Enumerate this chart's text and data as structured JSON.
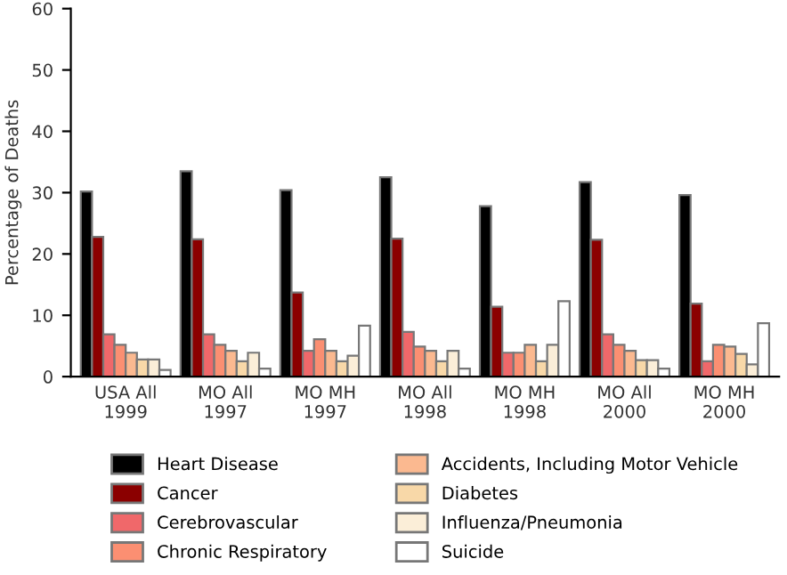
{
  "chart_data": {
    "type": "bar",
    "ylabel": "Percentage of Deaths",
    "categories": [
      "USA All\n1999",
      "MO All\n1997",
      "MO MH\n1997",
      "MO All\n1998",
      "MO MH\n1998",
      "MO All\n2000",
      "MO MH\n2000"
    ],
    "series": [
      {
        "name": "Heart Disease",
        "color": "#000000",
        "values": [
          30.2,
          33.5,
          30.4,
          32.5,
          27.8,
          31.7,
          29.6
        ]
      },
      {
        "name": "Cancer",
        "color": "#8b0000",
        "values": [
          22.8,
          22.4,
          13.7,
          22.5,
          11.4,
          22.3,
          11.9
        ]
      },
      {
        "name": "Cerebrovascular",
        "color": "#f0686a",
        "values": [
          6.9,
          6.9,
          4.2,
          7.3,
          3.9,
          6.9,
          2.5
        ]
      },
      {
        "name": "Chronic Respiratory",
        "color": "#fb8f72",
        "values": [
          5.2,
          5.2,
          6.1,
          4.9,
          3.9,
          5.2,
          5.2
        ]
      },
      {
        "name": "Accidents, Including Motor Vehicle",
        "color": "#fbb990",
        "values": [
          3.9,
          4.2,
          4.2,
          4.2,
          5.2,
          4.2,
          4.9
        ]
      },
      {
        "name": "Diabetes",
        "color": "#f8d8a8",
        "values": [
          2.8,
          2.5,
          2.5,
          2.5,
          2.5,
          2.7,
          3.7
        ]
      },
      {
        "name": "Influenza/Pneumonia",
        "color": "#fbeed8",
        "values": [
          2.8,
          3.9,
          3.4,
          4.2,
          5.2,
          2.7,
          2.0
        ]
      },
      {
        "name": "Suicide",
        "color": "#ffffff",
        "values": [
          1.1,
          1.3,
          8.3,
          1.3,
          12.3,
          1.3,
          8.7
        ]
      }
    ],
    "ylim": [
      0,
      60
    ],
    "yticks": [
      0,
      10,
      20,
      30,
      40,
      50,
      60
    ],
    "grid": false,
    "legend": "bottom"
  }
}
